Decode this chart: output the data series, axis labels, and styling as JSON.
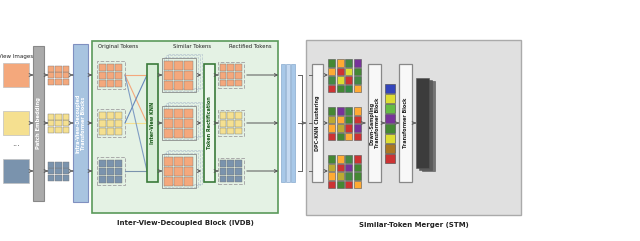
{
  "bg_color": "#ffffff",
  "ivdb_label": "Inter-View-Decoupled Block (IVDB)",
  "stm_label": "Similar-Token Merger (STM)",
  "view_images_label": "View Images",
  "patch_embed_label": "Patch Embedding",
  "intra_label": "Intra-View-Decoupled\nTransformer Blocks",
  "inter_knn_label": "Inter-View KNN",
  "token_rect_label": "Token Rectification",
  "orig_tokens_label": "Original Tokens",
  "similar_tokens_label": "Similar Tokens",
  "rectified_tokens_label": "Rectified Tokens",
  "dpc_label": "DPC-KNN Clustering",
  "downsample_label": "Down-Sampling\nTransformer Block",
  "transformer_label": "Transformer Block",
  "img_colors": [
    "#F4A87C",
    "#F5E090",
    "#7A93AD"
  ],
  "ivdb_bg": "#E4F2E4",
  "ivdb_ec": "#5A9A5A",
  "intra_color": "#A8C4E0",
  "patch_color": "#AAAAAA",
  "stm_bg": "#E0E0E0",
  "knn_bg": "#D8EED8",
  "knn_ec": "#3A7A3A",
  "rect_bg": "#EEF8EE",
  "rect_ec": "#3A7A3A",
  "white_block": "#F8F8F8",
  "stripe_colors": [
    "#A8C8E8",
    "#C4D8F0",
    "#A8C8E8"
  ],
  "stm_grid1": [
    [
      "#CC3333",
      "#448833",
      "#338844",
      "#FFAA33"
    ],
    [
      "#448844",
      "#DDDD33",
      "#CC3333",
      "#448844"
    ],
    [
      "#FFAA33",
      "#CC3333",
      "#DDDD33",
      "#448833"
    ],
    [
      "#448833",
      "#FFAA33",
      "#448844",
      "#773399"
    ]
  ],
  "stm_grid2": [
    [
      "#CC3333",
      "#448833",
      "#FFAA33",
      "#CC3333"
    ],
    [
      "#FFAA33",
      "#BBAA33",
      "#CC3333",
      "#773399"
    ],
    [
      "#BBAA33",
      "#FFAA33",
      "#448833",
      "#CC3333"
    ],
    [
      "#448833",
      "#773399",
      "#448844",
      "#FFAA33"
    ]
  ],
  "stm_grid3": [
    [
      "#CC3333",
      "#448833",
      "#CC3333",
      "#FFAA33"
    ],
    [
      "#FFAA33",
      "#BBAA33",
      "#448844",
      "#448833"
    ],
    [
      "#BBAA33",
      "#CC3333",
      "#773399",
      "#448833"
    ],
    [
      "#448833",
      "#FFAA33",
      "#448844",
      "#CC3333"
    ]
  ],
  "strip_colors": [
    "#CC3333",
    "#AA7722",
    "#DDDD33",
    "#448833",
    "#773399",
    "#66BB44",
    "#DDDD33",
    "#3344BB"
  ]
}
